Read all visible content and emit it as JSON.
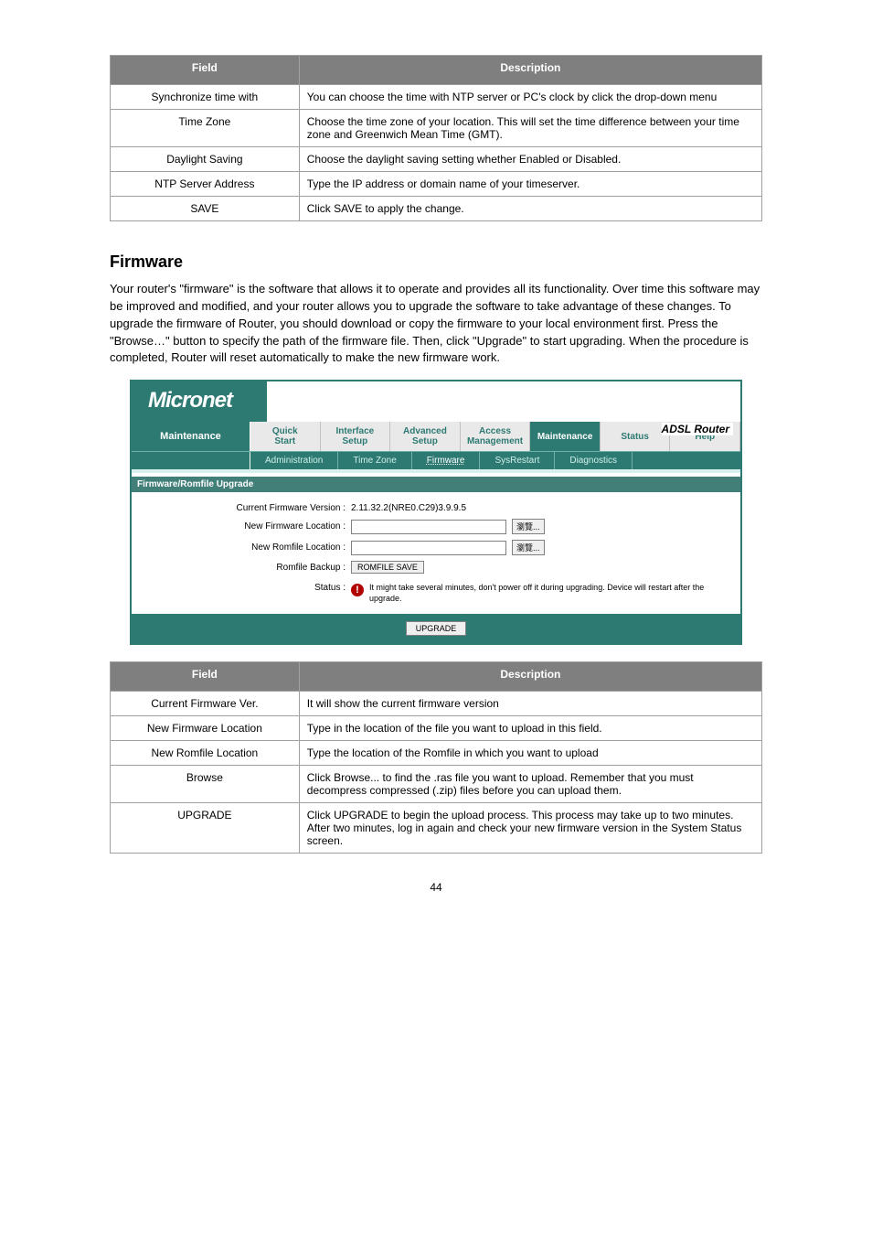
{
  "page_number": "44",
  "table1": {
    "headers": [
      "Field",
      "Description"
    ],
    "rows": [
      [
        "Synchronize time with",
        "You can choose the time with NTP server or PC's clock by click the drop-down menu"
      ],
      [
        "Time Zone",
        "Choose the time zone of your location. This will set the time difference between your time zone and Greenwich Mean Time (GMT)."
      ],
      [
        "Daylight Saving",
        "Choose the daylight saving setting whether Enabled or Disabled."
      ],
      [
        "NTP Server Address",
        "Type the IP address or domain name of your timeserver."
      ],
      [
        "SAVE",
        "Click SAVE to apply the change."
      ]
    ]
  },
  "section_heading": "Firmware",
  "body_text": "Your router's \"firmware\" is the software that allows it to operate and provides all its functionality. Over time this software may be improved and modified, and your router allows you to upgrade the software to take advantage of these changes. To upgrade the firmware of Router, you should download or copy the firmware to your local environment first. Press the \"Browse…\" button to specify the path of the firmware file. Then, click \"Upgrade\" to start upgrading. When the procedure is completed, Router will reset automatically to make the new firmware work.",
  "screenshot": {
    "logo": "Micronet",
    "product": "ADSL Router",
    "side_label": "Maintenance",
    "nav": [
      {
        "line1": "Quick",
        "line2": "Start"
      },
      {
        "line1": "Interface",
        "line2": "Setup"
      },
      {
        "line1": "Advanced",
        "line2": "Setup"
      },
      {
        "line1": "Access",
        "line2": "Management"
      },
      {
        "line1": "Maintenance",
        "line2": "",
        "active": true
      },
      {
        "line1": "Status",
        "line2": ""
      },
      {
        "line1": "Help",
        "line2": ""
      }
    ],
    "subnav": [
      "Administration",
      "Time Zone",
      "Firmware",
      "SysRestart",
      "Diagnostics"
    ],
    "subnav_active_index": 2,
    "panel_title": "Firmware/Romfile Upgrade",
    "labels": {
      "current_fw": "Current Firmware Version :",
      "new_fw": "New Firmware Location :",
      "new_rom": "New Romfile Location :",
      "rom_backup": "Romfile Backup :",
      "status": "Status :"
    },
    "current_fw_value": "2.11.32.2(NRE0.C29)3.9.9.5",
    "browse_label": "瀏覽...",
    "romfile_save": "ROMFILE SAVE",
    "warning": "It might take several minutes, don't power off it during upgrading. Device will restart after the upgrade.",
    "upgrade": "UPGRADE"
  },
  "table2": {
    "headers": [
      "Field",
      "Description"
    ],
    "rows": [
      [
        "Current Firmware Ver.",
        "It will show the current firmware version"
      ],
      [
        "New Firmware Location",
        "Type in the location of the file you want to upload in this field."
      ],
      [
        "New Romfile Location",
        "Type the location of the Romfile in which you want to upload"
      ],
      [
        "Browse",
        "Click Browse... to find the .ras file you want to upload. Remember that you must decompress compressed (.zip) files before you can upload them."
      ],
      [
        "UPGRADE",
        "Click UPGRADE to begin the upload process. This process may take up to two minutes. After two minutes, log in again and check your new firmware version in the System Status screen."
      ]
    ]
  },
  "colors": {
    "header_gray": "#7f7f7f",
    "teal": "#2d7a72",
    "teal_light": "#427f79",
    "border": "#a0a0a0",
    "warn_red": "#b00000"
  }
}
